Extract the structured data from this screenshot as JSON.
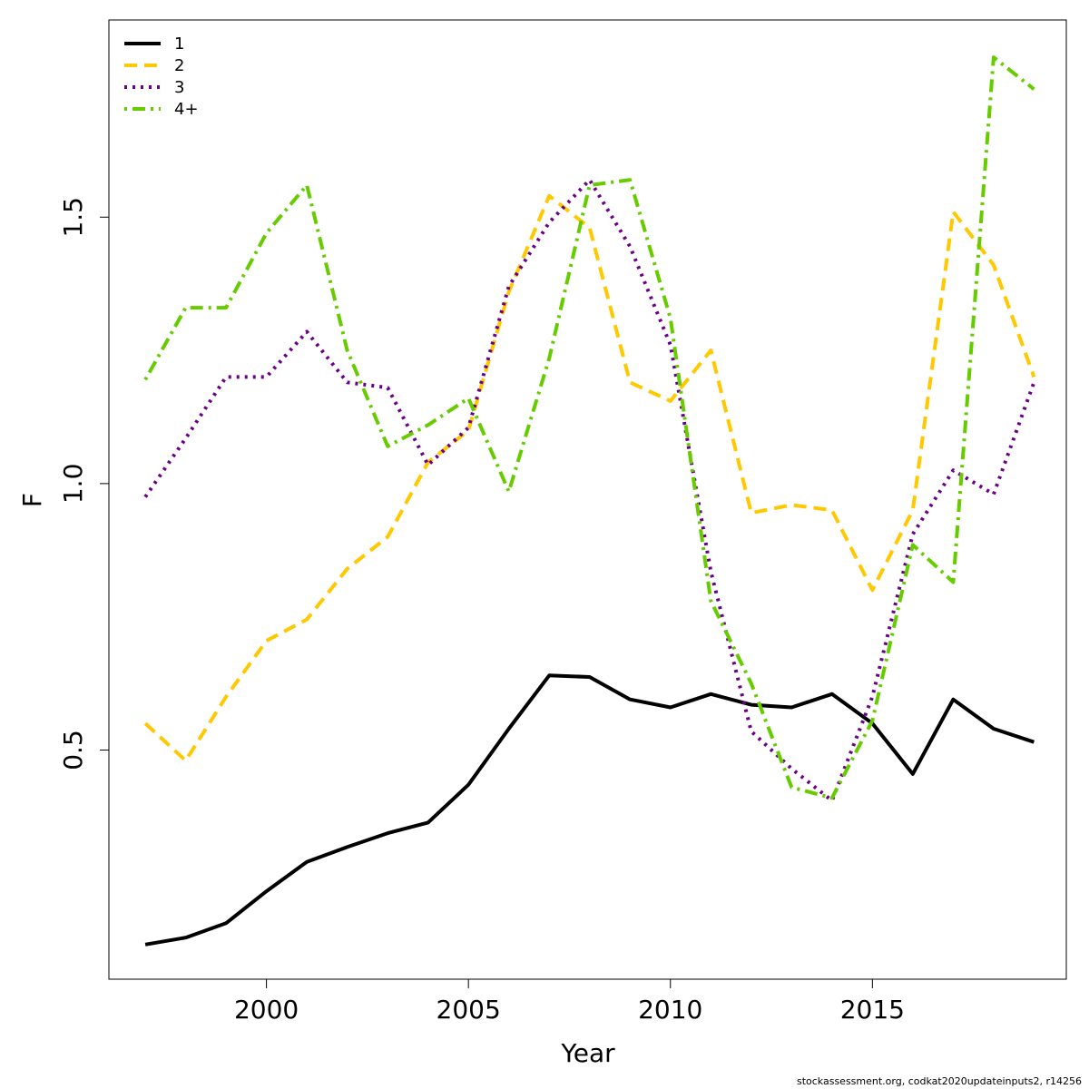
{
  "chart_data": {
    "type": "line",
    "xlabel": "Year",
    "ylabel": "F",
    "xlim": [
      1996.1,
      2019.8
    ],
    "ylim": [
      0.07,
      1.87
    ],
    "xticks": [
      2000,
      2005,
      2010,
      2015
    ],
    "yticks": [
      0.5,
      1.0,
      1.5
    ],
    "ytick_labels": [
      "0.5",
      "1.0",
      "1.5"
    ],
    "grid": false,
    "legend_position": "top-left",
    "x": [
      1997,
      1998,
      1999,
      2000,
      2001,
      2002,
      2003,
      2004,
      2005,
      2006,
      2007,
      2008,
      2009,
      2010,
      2011,
      2012,
      2013,
      2014,
      2015,
      2016,
      2017,
      2018,
      2019
    ],
    "series": [
      {
        "name": "1",
        "color": "#000000",
        "dash": "solid",
        "values": [
          0.135,
          0.148,
          0.175,
          0.235,
          0.29,
          0.318,
          0.344,
          0.364,
          0.435,
          0.54,
          0.64,
          0.637,
          0.595,
          0.58,
          0.605,
          0.585,
          0.58,
          0.605,
          0.55,
          0.455,
          0.595,
          0.54,
          0.515
        ]
      },
      {
        "name": "2",
        "color": "#ffc800",
        "dash": "dashed",
        "values": [
          0.55,
          0.48,
          0.6,
          0.705,
          0.745,
          0.84,
          0.9,
          1.04,
          1.1,
          1.36,
          1.54,
          1.48,
          1.19,
          1.155,
          1.25,
          0.945,
          0.96,
          0.95,
          0.8,
          0.95,
          1.51,
          1.41,
          1.2
        ]
      },
      {
        "name": "3",
        "color": "#6a008a",
        "dash": "dotted",
        "values": [
          0.975,
          1.085,
          1.2,
          1.2,
          1.285,
          1.19,
          1.18,
          1.035,
          1.105,
          1.37,
          1.49,
          1.57,
          1.445,
          1.26,
          0.835,
          0.535,
          0.465,
          0.405,
          0.6,
          0.905,
          1.025,
          0.98,
          1.19
        ]
      },
      {
        "name": "4+",
        "color": "#66cc00",
        "dash": "dotdash",
        "values": [
          1.195,
          1.33,
          1.33,
          1.47,
          1.56,
          1.25,
          1.07,
          1.11,
          1.16,
          0.985,
          1.235,
          1.56,
          1.57,
          1.31,
          0.78,
          0.625,
          0.43,
          0.41,
          0.555,
          0.885,
          0.815,
          1.8,
          1.74
        ]
      }
    ]
  },
  "credit": "stockassessment.org, codkat2020updateinputs2, r14256"
}
